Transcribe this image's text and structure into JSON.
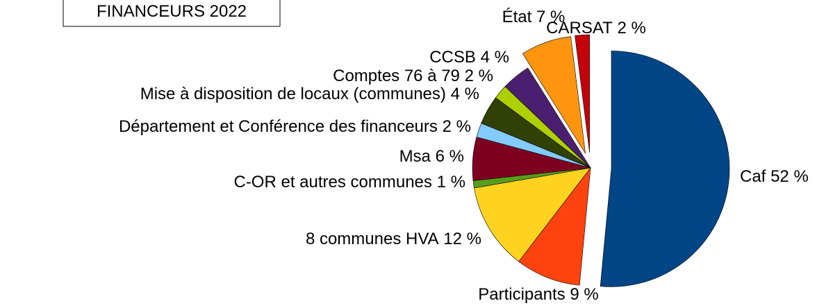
{
  "chart_data": {
    "type": "pie",
    "title": "FINANCEURS 2022",
    "categories": [
      "Caf",
      "Participants",
      "8 communes HVA",
      "C-OR et autres communes",
      "Msa",
      "Département et Conférence des financeurs",
      "Mise à disposition de locaux (communes)",
      "Comptes 76 à 79",
      "CCSB",
      "État",
      "CARSAT"
    ],
    "values": [
      52,
      9,
      12,
      1,
      6,
      2,
      4,
      2,
      4,
      7,
      2
    ],
    "value_labels": [
      "52 %",
      "9 %",
      "12 %",
      "1 %",
      "6 %",
      "2 %",
      "4 %",
      "2 %",
      "4 %",
      "7 %",
      "2 %"
    ],
    "colors": [
      "#004586",
      "#ff420e",
      "#ffd320",
      "#579d1c",
      "#7e0021",
      "#83caff",
      "#314004",
      "#aecf00",
      "#4b1f6f",
      "#ff950e",
      "#c5000b"
    ]
  }
}
